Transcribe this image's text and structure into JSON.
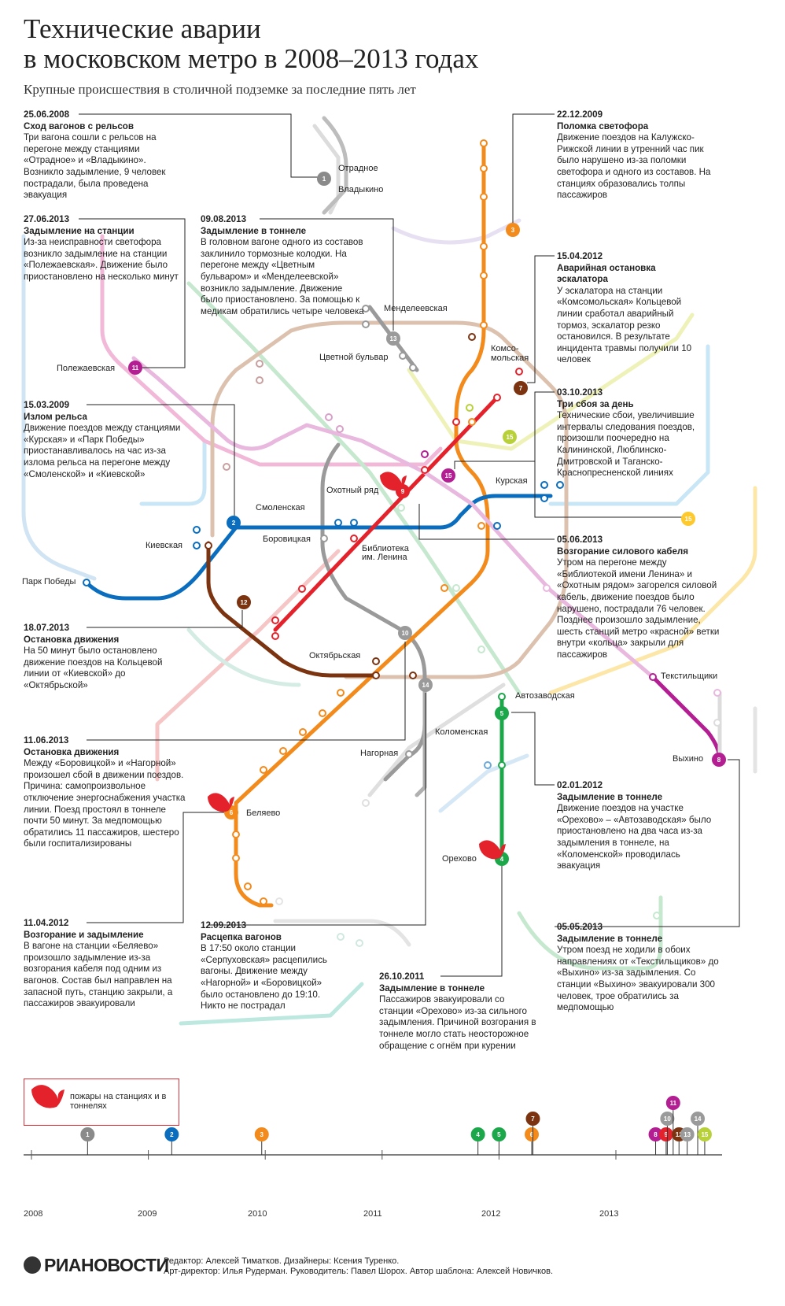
{
  "header": {
    "title_line1": "Технические аварии",
    "title_line2": "в московском метро в 2008–2013 годах",
    "subtitle": "Крупные происшествия в столичной подземке за последние пять лет"
  },
  "colors": {
    "line1": "#8a8a8a",
    "line2": "#0a6dbd",
    "line3": "#f28a1c",
    "line4": "#1ca84a",
    "line5": "#1ca84a",
    "line6": "#f28a1c",
    "line7": "#7b3310",
    "line8": "#b31e92",
    "line9": "#e4222b",
    "line10": "#9a9a9a",
    "line11": "#b31e92",
    "line12": "#7b3310",
    "line13": "#9a9a9a",
    "line14": "#9a9a9a",
    "line15": "#b8d13a"
  },
  "incidents": [
    {
      "date": "25.06.2008",
      "head": "Сход вагонов с рельсов",
      "text": "Три вагона сошли с рельсов на перегоне между станциями «Отрадное» и «Владыкино». Возникло задымление, 9 человек пострадали, была проведена эвакуация"
    },
    {
      "date": "27.06.2013",
      "head": "Задымление на станции",
      "text": "Из-за неисправности светофора возникло задымление на станции «Полежаевская». Движение было приостановлено на несколько минут"
    },
    {
      "date": "09.08.2013",
      "head": "Задымление в тоннеле",
      "text": "В головном вагоне одного из составов заклинило тормозные колодки. На перегоне между «Цветным бульваром» и «Менделеевской» возникло задымление. Движение было приостановлено. За помощью к медикам обратились четыре человека"
    },
    {
      "date": "22.12.2009",
      "head": "Поломка светофора",
      "text": "Движение поездов на Калужско-Рижской линии в утренний час пик было нарушено из-за поломки светофора и одного из составов. На станциях образовались толпы пассажиров"
    },
    {
      "date": "15.04.2012",
      "head": "Аварийная остановка эскалатора",
      "text": "У эскалатора на станции «Комсомольская» Кольцевой линии сработал аварийный тормоз, эскалатор резко остановился. В результате инцидента травмы получили 10 человек"
    },
    {
      "date": "15.03.2009",
      "head": "Излом рельса",
      "text": "Движение поездов между станциями «Курская» и «Парк Победы» приостанавливалось на час из-за излома рельса на перегоне между «Смоленской» и «Киевской»"
    },
    {
      "date": "03.10.2013",
      "head": "Три сбоя за день",
      "text": "Технические сбои, увеличившие интервалы следования поездов, произошли поочередно на Калининской, Люблинско-Дмитровской и Таганско-Краснопресненской линиях"
    },
    {
      "date": "05.06.2013",
      "head": "Возгорание силового кабеля",
      "text": "Утром на перегоне между «Библиотекой имени Ленина» и «Охотным рядом» загорелся силовой кабель, движение поездов было нарушено, пострадали 76 человек. Позднее произошло задымление, шесть станций метро «красной» ветки внутри «кольца» закрыли для пассажиров"
    },
    {
      "date": "18.07.2013",
      "head": "Остановка движения",
      "text": "На 50 минут было остановлено движение поездов на Кольцевой линии от «Киевской» до «Октябрьской»"
    },
    {
      "date": "11.06.2013",
      "head": "Остановка движения",
      "text": "Между «Боровицкой» и «Нагорной» произошел сбой в движении поездов. Причина: самопроизвольное отключение энергоснабжения участка линии. Поезд простоял в тоннеле почти 50 минут. За медпомощью обратились 11 пассажиров, шестеро были госпитализированы"
    },
    {
      "date": "02.01.2012",
      "head": "Задымление в тоннеле",
      "text": "Движение поездов на участке «Орехово» – «Автозаводская» было приостановлено на два часа из-за задымления в тоннеле, на «Коломенской» проводилась эвакуация"
    },
    {
      "date": "11.04.2012",
      "head": "Возгорание и задымление",
      "text": "В вагоне на станции «Беляево» произошло задымление из-за возгорания кабеля под одним из вагонов. Состав был направлен на запасной путь, станцию закрыли, а пассажиров эвакуировали"
    },
    {
      "date": "12.09.2013",
      "head": "Расцепка вагонов",
      "text": "В 17:50 около станции «Серпуховская» расцепились вагоны. Движение между «Нагорной» и «Боровицкой» было остановлено до 19:10. Никто не пострадал"
    },
    {
      "date": "26.10.2011",
      "head": "Задымление в тоннеле",
      "text": "Пассажиров эвакуировали со станции «Орехово» из-за сильного задымления. Причиной возгорания в тоннеле могло стать неосторожное обращение с огнём при курении"
    },
    {
      "date": "05.05.2013",
      "head": "Задымление в тоннеле",
      "text": "Утром поезд не ходили в обоих направлениях от «Текстильщиков» до «Выхино» из-за задымления. Со станции «Выхино» эвакуировали 300 человек, трое обратились за медпомощью"
    }
  ],
  "stations": [
    "Отрадное",
    "Владыкино",
    "Менделеевская",
    "Цветной бульвар",
    "Комсо-",
    "мольская",
    "Полежаевская",
    "Охотный ряд",
    "Курская",
    "Смоленская",
    "Киевская",
    "Боровицкая",
    "Библиотека",
    "им. Ленина",
    "Парк Победы",
    "Октябрьская",
    "Текстильщики",
    "Автозаводская",
    "Коломенская",
    "Нагорная",
    "Выхино",
    "Беляево",
    "Орехово"
  ],
  "markers": [
    "1",
    "2",
    "3",
    "4",
    "5",
    "6",
    "7",
    "8",
    "9",
    "10",
    "11",
    "12",
    "13",
    "14",
    "15",
    "15",
    "15"
  ],
  "legend": {
    "text": "пожары на станциях и в тоннелях",
    "icon": "fire-icon"
  },
  "timeline": {
    "years": [
      "2008",
      "2009",
      "2010",
      "2011",
      "2012",
      "2013"
    ],
    "events": [
      {
        "n": "1",
        "year_frac": 2008.48
      },
      {
        "n": "2",
        "year_frac": 2009.2
      },
      {
        "n": "3",
        "year_frac": 2009.97
      },
      {
        "n": "4",
        "year_frac": 2011.82
      },
      {
        "n": "5",
        "year_frac": 2012.0
      },
      {
        "n": "6",
        "year_frac": 2012.28
      },
      {
        "n": "7",
        "year_frac": 2012.29
      },
      {
        "n": "8",
        "year_frac": 2013.34
      },
      {
        "n": "9",
        "year_frac": 2013.43
      },
      {
        "n": "10",
        "year_frac": 2013.44
      },
      {
        "n": "11",
        "year_frac": 2013.49
      },
      {
        "n": "12",
        "year_frac": 2013.54
      },
      {
        "n": "13",
        "year_frac": 2013.61
      },
      {
        "n": "14",
        "year_frac": 2013.7
      },
      {
        "n": "15",
        "year_frac": 2013.76
      }
    ]
  },
  "footer": {
    "logo": "РИАНОВОСТИ",
    "credits1": "Редактор: Алексей Тиматков. Дизайнеры: Ксения Туренко.",
    "credits2": "Арт-директор: Илья Рудерман. Руководитель: Павел Шорох. Автор шаблона: Алексей Новичков."
  }
}
